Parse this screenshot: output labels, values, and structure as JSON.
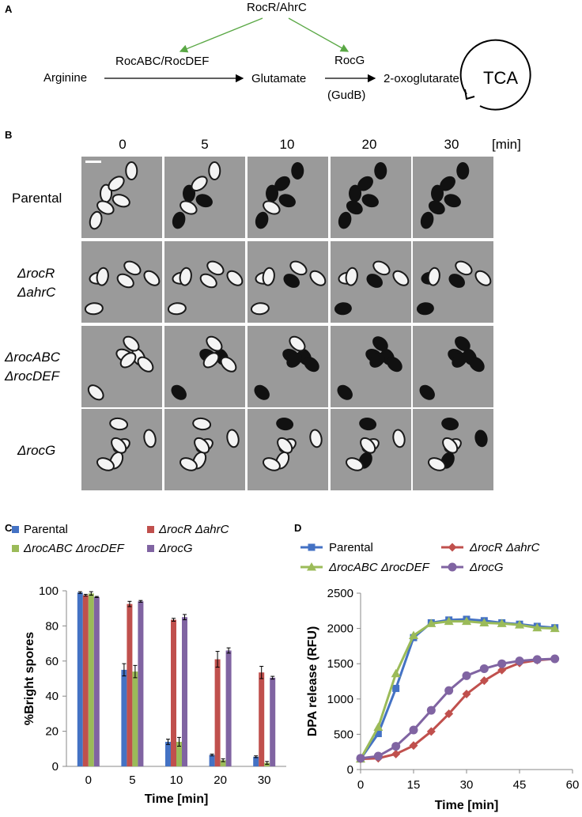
{
  "panelA": {
    "letter": "A",
    "regulator": "RocR/AhrC",
    "substrate": "Arginine",
    "enzyme1": "RocABC/RocDEF",
    "intermediate": "Glutamate",
    "enzyme2": "RocG",
    "enzyme2_alt": "(GudB)",
    "product": "2-oxoglutarate",
    "cycle": "TCA",
    "regulation_color": "#5aa845"
  },
  "panelB": {
    "letter": "B",
    "time_unit": "[min]",
    "timepoints": [
      "0",
      "5",
      "10",
      "20",
      "30"
    ],
    "rows": [
      {
        "line1": "Parental",
        "line2": "",
        "italic": false
      },
      {
        "line1": "ΔrocR",
        "line2": "ΔahrC",
        "italic": true
      },
      {
        "line1": "ΔrocABC",
        "line2": "ΔrocDEF",
        "italic": true
      },
      {
        "line1": "ΔrocG",
        "line2": "",
        "italic": true
      }
    ]
  },
  "panelC": {
    "letter": "C",
    "legend": [
      "Parental",
      "ΔrocR ΔahrC",
      "ΔrocABC ΔrocDEF",
      "ΔrocG"
    ]
  },
  "panelD": {
    "letter": "D",
    "legend": [
      "Parental",
      "ΔrocR ΔahrC",
      "ΔrocABC ΔrocDEF",
      "ΔrocG"
    ]
  },
  "chart_data": [
    {
      "type": "bar",
      "xlabel": "Time [min]",
      "ylabel": "%Bright spores",
      "ylim": [
        0,
        100
      ],
      "yticks": [
        0,
        20,
        40,
        60,
        80,
        100
      ],
      "categories": [
        "0",
        "5",
        "10",
        "20",
        "30"
      ],
      "grid": false,
      "legend_position": "top",
      "series": [
        {
          "name": "Parental",
          "color": "#4472c4",
          "values": [
            99,
            55,
            14,
            6.5,
            5.5
          ],
          "errors": [
            0.5,
            3.5,
            1.5,
            0.5,
            0.5
          ]
        },
        {
          "name": "ΔrocR ΔahrC",
          "color": "#c0504d",
          "values": [
            97.5,
            92.5,
            83.5,
            61,
            53.5
          ],
          "errors": [
            0.5,
            1.5,
            0.8,
            4.5,
            3.5
          ]
        },
        {
          "name": "ΔrocABC ΔrocDEF",
          "color": "#9bbb59",
          "values": [
            98.5,
            54,
            14,
            3.5,
            2
          ],
          "errors": [
            1,
            3.5,
            2.5,
            0.8,
            0.8
          ]
        },
        {
          "name": "ΔrocG",
          "color": "#8064a2",
          "values": [
            96.5,
            94,
            85,
            66,
            50.5
          ],
          "errors": [
            0.3,
            0.5,
            1.5,
            1.5,
            0.8
          ]
        }
      ]
    },
    {
      "type": "line",
      "xlabel": "Time [min]",
      "ylabel": "DPA release (RFU)",
      "xlim": [
        0,
        60
      ],
      "ylim": [
        0,
        2500
      ],
      "xticks": [
        0,
        15,
        30,
        45,
        60
      ],
      "yticks": [
        0,
        500,
        1000,
        1500,
        2000,
        2500
      ],
      "grid": false,
      "legend_position": "top",
      "series": [
        {
          "name": "Parental",
          "color": "#4472c4",
          "marker": "square",
          "x": [
            0,
            5,
            10,
            15,
            20,
            25,
            30,
            35,
            40,
            45,
            50,
            55
          ],
          "y": [
            150,
            510,
            1150,
            1870,
            2080,
            2120,
            2130,
            2110,
            2080,
            2060,
            2030,
            2010
          ]
        },
        {
          "name": "ΔrocR ΔahrC",
          "color": "#c0504d",
          "marker": "diamond",
          "x": [
            0,
            5,
            10,
            15,
            20,
            25,
            30,
            35,
            40,
            45,
            50,
            55
          ],
          "y": [
            150,
            160,
            220,
            340,
            540,
            790,
            1070,
            1260,
            1410,
            1510,
            1550,
            1570
          ]
        },
        {
          "name": "ΔrocABC ΔrocDEF",
          "color": "#9bbb59",
          "marker": "triangle",
          "x": [
            0,
            5,
            10,
            15,
            20,
            25,
            30,
            35,
            40,
            45,
            50,
            55
          ],
          "y": [
            150,
            600,
            1360,
            1900,
            2070,
            2100,
            2100,
            2080,
            2070,
            2050,
            2010,
            2000
          ]
        },
        {
          "name": "ΔrocG",
          "color": "#8064a2",
          "marker": "circle",
          "x": [
            0,
            5,
            10,
            15,
            20,
            25,
            30,
            35,
            40,
            45,
            50,
            55
          ],
          "y": [
            160,
            190,
            330,
            560,
            840,
            1120,
            1330,
            1430,
            1500,
            1540,
            1560,
            1570
          ]
        }
      ]
    }
  ]
}
